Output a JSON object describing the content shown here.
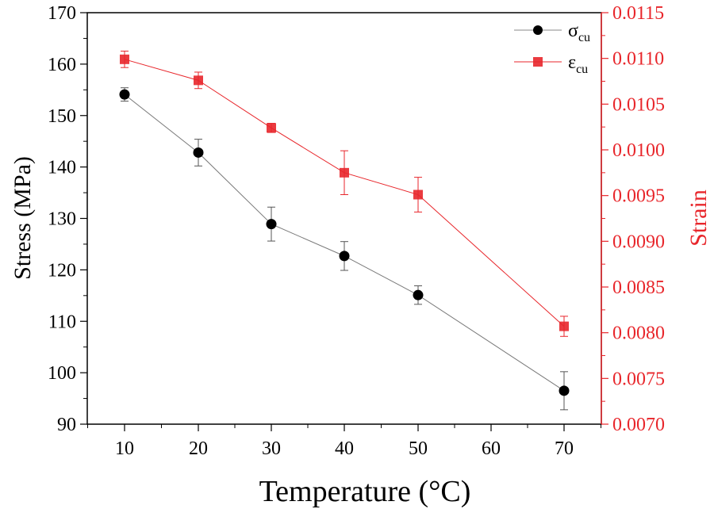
{
  "chart_data": {
    "type": "line",
    "xlabel": "Temperature (°C)",
    "ylabel": "Stress (MPa)",
    "y2label": "Strain",
    "categories": [
      "10",
      "20",
      "30",
      "40",
      "50",
      "60",
      "70"
    ],
    "x_ticks": [
      "10",
      "20",
      "30",
      "40",
      "50",
      "60",
      "70"
    ],
    "y_ticks": [
      "90",
      "100",
      "110",
      "120",
      "130",
      "140",
      "150",
      "160",
      "170"
    ],
    "y2_ticks": [
      "0.0070",
      "0.0075",
      "0.0080",
      "0.0085",
      "0.0090",
      "0.0095",
      "0.0100",
      "0.0105",
      "0.0110",
      "0.0115"
    ],
    "ylim": [
      90,
      170
    ],
    "y2lim": [
      0.007,
      0.0115
    ],
    "colors": {
      "stress": "#000000",
      "strain": "#e8262b",
      "axis": "#000000",
      "right_axis": "#e8262b"
    },
    "legend_position": "top-right",
    "series": [
      {
        "name": "σcu",
        "symbol": "σ",
        "subscript": "cu",
        "axis": "left",
        "marker": "circle",
        "x": [
          "10",
          "20",
          "30",
          "40",
          "50",
          "70"
        ],
        "values": [
          154.1,
          142.8,
          128.9,
          122.7,
          115.1,
          96.5
        ],
        "errors": [
          1.3,
          2.6,
          3.3,
          2.8,
          1.8,
          3.7
        ]
      },
      {
        "name": "εcu",
        "symbol": "ε",
        "subscript": "cu",
        "axis": "right",
        "marker": "square",
        "x": [
          "10",
          "20",
          "30",
          "40",
          "50",
          "70"
        ],
        "values": [
          0.01099,
          0.01076,
          0.01024,
          0.00975,
          0.00951,
          0.00807
        ],
        "errors": [
          9e-05,
          9e-05,
          5e-05,
          0.00024,
          0.00019,
          0.00011
        ]
      }
    ]
  }
}
